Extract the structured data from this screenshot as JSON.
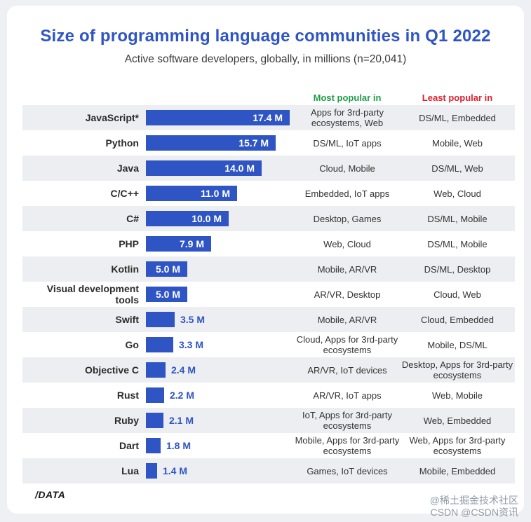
{
  "header": {
    "title": "Size of programming language communities in Q1 2022",
    "subtitle": "Active software developers, globally, in millions (n=20,041)"
  },
  "columns": {
    "most_popular": "Most popular in",
    "least_popular": "Least popular in",
    "most_color": "#1e9e45",
    "least_color": "#e01e2c"
  },
  "chart_data": {
    "type": "bar",
    "orientation": "horizontal",
    "title": "Size of programming language communities in Q1 2022",
    "subtitle": "Active software developers, globally, in millions (n=20,041)",
    "unit": "M",
    "bar_color": "#2f55c4",
    "xlim": [
      0,
      17.4
    ],
    "categories": [
      "JavaScript*",
      "Python",
      "Java",
      "C/C++",
      "C#",
      "PHP",
      "Kotlin",
      "Visual development tools",
      "Swift",
      "Go",
      "Objective C",
      "Rust",
      "Ruby",
      "Dart",
      "Lua"
    ],
    "values": [
      17.4,
      15.7,
      14.0,
      11.0,
      10.0,
      7.9,
      5.0,
      5.0,
      3.5,
      3.3,
      2.4,
      2.2,
      2.1,
      1.8,
      1.4
    ],
    "value_labels": [
      "17.4 M",
      "15.7 M",
      "14.0 M",
      "11.0 M",
      "10.0 M",
      "7.9 M",
      "5.0 M",
      "5.0 M",
      "3.5 M",
      "3.3 M",
      "2.4 M",
      "2.2 M",
      "2.1 M",
      "1.8 M",
      "1.4 M"
    ],
    "most_popular_in": [
      "Apps for 3rd-party ecosystems, Web",
      "DS/ML, IoT apps",
      "Cloud, Mobile",
      "Embedded, IoT apps",
      "Desktop, Games",
      "Web, Cloud",
      "Mobile, AR/VR",
      "AR/VR, Desktop",
      "Mobile, AR/VR",
      "Cloud, Apps for 3rd-party ecosystems",
      "AR/VR, IoT devices",
      "AR/VR, IoT apps",
      "IoT, Apps for 3rd-party ecosystems",
      "Mobile, Apps for 3rd-party ecosystems",
      "Games, IoT devices"
    ],
    "least_popular_in": [
      "DS/ML, Embedded",
      "Mobile, Web",
      "DS/ML, Web",
      "Web, Cloud",
      "DS/ML, Mobile",
      "DS/ML, Mobile",
      "DS/ML, Desktop",
      "Cloud, Web",
      "Cloud, Embedded",
      "Mobile, DS/ML",
      "Desktop, Apps for 3rd-party ecosystems",
      "Web, Mobile",
      "Web, Embedded",
      "Web, Apps for 3rd-party ecosystems",
      "Mobile, Embedded"
    ]
  },
  "footer": {
    "logo": "/DATA",
    "watermark": "@稀土掘金技术社区\nCSDN @CSDN资讯"
  }
}
